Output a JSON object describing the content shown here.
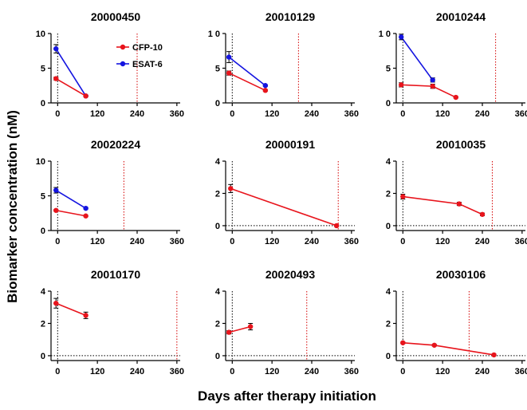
{
  "figure": {
    "ylabel": "Biomarker concentration (nM)",
    "xlabel": "Days after therapy initiation"
  },
  "colors": {
    "CFP-10": "#e8141c",
    "ESAT-6": "#1414e0",
    "threshold": "#d40000"
  },
  "chart_data": [
    {
      "type": "line",
      "title": "20000450",
      "xlim": [
        -20,
        370
      ],
      "ylim": [
        0,
        10
      ],
      "xticks": [
        0,
        120,
        240,
        360
      ],
      "yticks": [
        0,
        5,
        10
      ],
      "yticklabels": [
        "0",
        "5",
        "10"
      ],
      "therapy_end_day": 240,
      "legend": [
        "CFP-10",
        "ESAT-6"
      ],
      "series": [
        {
          "name": "CFP-10",
          "points": [
            {
              "x": -5,
              "y": 3.5,
              "err": 0.2
            },
            {
              "x": 85,
              "y": 1.0,
              "err": 0.1
            }
          ]
        },
        {
          "name": "ESAT-6",
          "points": [
            {
              "x": -5,
              "y": 7.8,
              "err": 0.6
            },
            {
              "x": 85,
              "y": 1.0,
              "err": 0.1
            }
          ]
        }
      ]
    },
    {
      "type": "line",
      "title": "20010129",
      "xlim": [
        -20,
        370
      ],
      "ylim": [
        0,
        10
      ],
      "xticks": [
        0,
        120,
        240,
        360
      ],
      "yticks": [
        0,
        5,
        10
      ],
      "yticklabels": [
        "0",
        "5",
        "1 0"
      ],
      "therapy_end_day": 200,
      "series": [
        {
          "name": "CFP-10",
          "points": [
            {
              "x": -10,
              "y": 4.3,
              "err": 0.3
            },
            {
              "x": 100,
              "y": 1.8,
              "err": 0.1
            }
          ]
        },
        {
          "name": "ESAT-6",
          "points": [
            {
              "x": -10,
              "y": 6.6,
              "err": 0.8
            },
            {
              "x": 100,
              "y": 2.5,
              "err": 0.1
            }
          ]
        }
      ]
    },
    {
      "type": "line",
      "title": "20010244",
      "xlim": [
        -20,
        370
      ],
      "ylim": [
        0,
        10
      ],
      "xticks": [
        0,
        120,
        240,
        360
      ],
      "yticks": [
        0,
        5,
        10
      ],
      "yticklabels": [
        "0",
        "5",
        "1 0"
      ],
      "therapy_end_day": 280,
      "series": [
        {
          "name": "CFP-10",
          "points": [
            {
              "x": -5,
              "y": 2.6,
              "err": 0.3
            },
            {
              "x": 90,
              "y": 2.4,
              "err": 0.3
            },
            {
              "x": 160,
              "y": 0.8,
              "err": 0.1
            }
          ]
        },
        {
          "name": "ESAT-6",
          "points": [
            {
              "x": -5,
              "y": 9.5,
              "err": 0.4
            },
            {
              "x": 90,
              "y": 3.3,
              "err": 0.3
            }
          ]
        }
      ]
    },
    {
      "type": "line",
      "title": "20020224",
      "xlim": [
        -20,
        370
      ],
      "ylim": [
        0,
        10
      ],
      "xticks": [
        0,
        120,
        240,
        360
      ],
      "yticks": [
        0,
        5,
        10
      ],
      "yticklabels": [
        "0",
        "5",
        "10"
      ],
      "therapy_end_day": 200,
      "series": [
        {
          "name": "CFP-10",
          "points": [
            {
              "x": -5,
              "y": 2.9,
              "err": 0.1
            },
            {
              "x": 85,
              "y": 2.1,
              "err": 0.1
            }
          ]
        },
        {
          "name": "ESAT-6",
          "points": [
            {
              "x": -5,
              "y": 5.8,
              "err": 0.4
            },
            {
              "x": 85,
              "y": 3.2,
              "err": 0.1
            }
          ]
        }
      ]
    },
    {
      "type": "line",
      "title": "20000191",
      "xlim": [
        -20,
        370
      ],
      "ylim": [
        -0.3,
        4
      ],
      "xticks": [
        0,
        120,
        240,
        360
      ],
      "yticks": [
        0,
        2,
        4
      ],
      "yticklabels": [
        "0",
        "2",
        "4"
      ],
      "therapy_end_day": 320,
      "series": [
        {
          "name": "CFP-10",
          "points": [
            {
              "x": -5,
              "y": 2.3,
              "err": 0.25
            },
            {
              "x": 315,
              "y": 0.0,
              "err": 0.05
            }
          ]
        }
      ]
    },
    {
      "type": "line",
      "title": "20010035",
      "xlim": [
        -20,
        370
      ],
      "ylim": [
        -0.3,
        4
      ],
      "xticks": [
        0,
        120,
        240,
        360
      ],
      "yticks": [
        0,
        2,
        4
      ],
      "yticklabels": [
        "0",
        "2",
        "4"
      ],
      "therapy_end_day": 270,
      "series": [
        {
          "name": "CFP-10",
          "points": [
            {
              "x": 0,
              "y": 1.8,
              "err": 0.15
            },
            {
              "x": 170,
              "y": 1.35,
              "err": 0.1
            },
            {
              "x": 240,
              "y": 0.7,
              "err": 0.08
            }
          ]
        }
      ]
    },
    {
      "type": "line",
      "title": "20010170",
      "xlim": [
        -20,
        370
      ],
      "ylim": [
        -0.3,
        4
      ],
      "xticks": [
        0,
        120,
        240,
        360
      ],
      "yticks": [
        0,
        2,
        4
      ],
      "yticklabels": [
        "0",
        "2",
        "4"
      ],
      "therapy_end_day": 360,
      "series": [
        {
          "name": "CFP-10",
          "points": [
            {
              "x": -5,
              "y": 3.25,
              "err": 0.3
            },
            {
              "x": 85,
              "y": 2.5,
              "err": 0.2
            }
          ]
        }
      ]
    },
    {
      "type": "line",
      "title": "20020493",
      "xlim": [
        -20,
        370
      ],
      "ylim": [
        -0.3,
        4
      ],
      "xticks": [
        0,
        120,
        240,
        360
      ],
      "yticks": [
        0,
        2,
        4
      ],
      "yticklabels": [
        "0",
        "2",
        "4"
      ],
      "therapy_end_day": 225,
      "series": [
        {
          "name": "CFP-10",
          "points": [
            {
              "x": -10,
              "y": 1.45,
              "err": 0.1
            },
            {
              "x": 55,
              "y": 1.8,
              "err": 0.2
            }
          ]
        }
      ]
    },
    {
      "type": "line",
      "title": "20030106",
      "xlim": [
        -20,
        370
      ],
      "ylim": [
        -0.3,
        4
      ],
      "xticks": [
        0,
        120,
        240,
        360
      ],
      "yticks": [
        0,
        2,
        4
      ],
      "yticklabels": [
        "0",
        "2",
        "4"
      ],
      "therapy_end_day": 200,
      "series": [
        {
          "name": "CFP-10",
          "points": [
            {
              "x": 0,
              "y": 0.8,
              "err": 0.05
            },
            {
              "x": 95,
              "y": 0.65,
              "err": 0.05
            },
            {
              "x": 275,
              "y": 0.05,
              "err": 0.05
            }
          ]
        }
      ]
    }
  ]
}
